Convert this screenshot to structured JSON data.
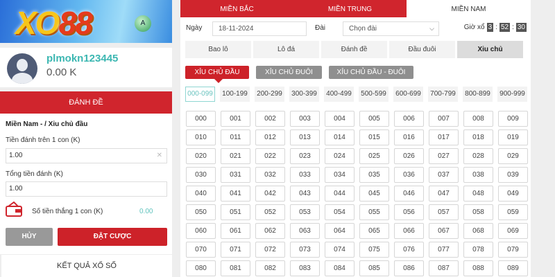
{
  "brand": {
    "logo_text": "XO88"
  },
  "user": {
    "name": "plmokn123445",
    "balance": "0.00 K"
  },
  "bet_panel": {
    "title": "ĐÁNH ĐỀ",
    "breadcrumb": "Miền Nam - / Xiu chủ đầu",
    "stake_label": "Tiền đánh trên 1 con (K)",
    "stake_value": "1.00",
    "total_label": "Tổng tiền đánh (K)",
    "total_value": "1.00",
    "win_label": "Số tiền thắng 1 con (K)",
    "win_value": "0.00",
    "cancel_label": "HỦY",
    "submit_label": "ĐẶT CƯỢC"
  },
  "results_title": "KẾT QUẢ XỔ SỐ",
  "region_tabs": [
    {
      "label": "MIỀN BẮC"
    },
    {
      "label": "MIỀN TRUNG"
    },
    {
      "label": "MIỀN NAM",
      "active": true
    }
  ],
  "filters": {
    "date_label": "Ngày",
    "date_value": "18-11-2024",
    "station_label": "Đài",
    "station_value": "Chọn đài",
    "draw_label": "Giờ xổ",
    "hh": "3",
    "mm": "52",
    "ss": "30",
    "sep": ":"
  },
  "bet_types": [
    "Bao lô",
    "Lô đá",
    "Đánh đề",
    "Đầu đuôi",
    "Xiu chủ"
  ],
  "active_bet_type": "Xiu chủ",
  "sub_types": [
    "XỈU CHỦ ĐẦU",
    "XỈU CHỦ ĐUÔI",
    "XỈU CHỦ ĐẦU - ĐUÔI"
  ],
  "ranges": [
    "000-099",
    "100-199",
    "200-299",
    "300-399",
    "400-499",
    "500-599",
    "600-699",
    "700-799",
    "800-899",
    "900-999"
  ],
  "numbers": [
    "000",
    "001",
    "002",
    "003",
    "004",
    "005",
    "006",
    "007",
    "008",
    "009",
    "010",
    "011",
    "012",
    "013",
    "014",
    "015",
    "016",
    "017",
    "018",
    "019",
    "020",
    "021",
    "022",
    "023",
    "024",
    "025",
    "026",
    "027",
    "028",
    "029",
    "030",
    "031",
    "032",
    "033",
    "034",
    "035",
    "036",
    "037",
    "038",
    "039",
    "040",
    "041",
    "042",
    "043",
    "044",
    "045",
    "046",
    "047",
    "048",
    "049",
    "050",
    "051",
    "052",
    "053",
    "054",
    "055",
    "056",
    "057",
    "058",
    "059",
    "060",
    "061",
    "062",
    "063",
    "064",
    "065",
    "066",
    "067",
    "068",
    "069",
    "070",
    "071",
    "072",
    "073",
    "074",
    "075",
    "076",
    "077",
    "078",
    "079",
    "080",
    "081",
    "082",
    "083",
    "084",
    "085",
    "086",
    "087",
    "088",
    "089"
  ],
  "colors": {
    "primary": "#d0252d",
    "accent": "#3cb7b2"
  }
}
